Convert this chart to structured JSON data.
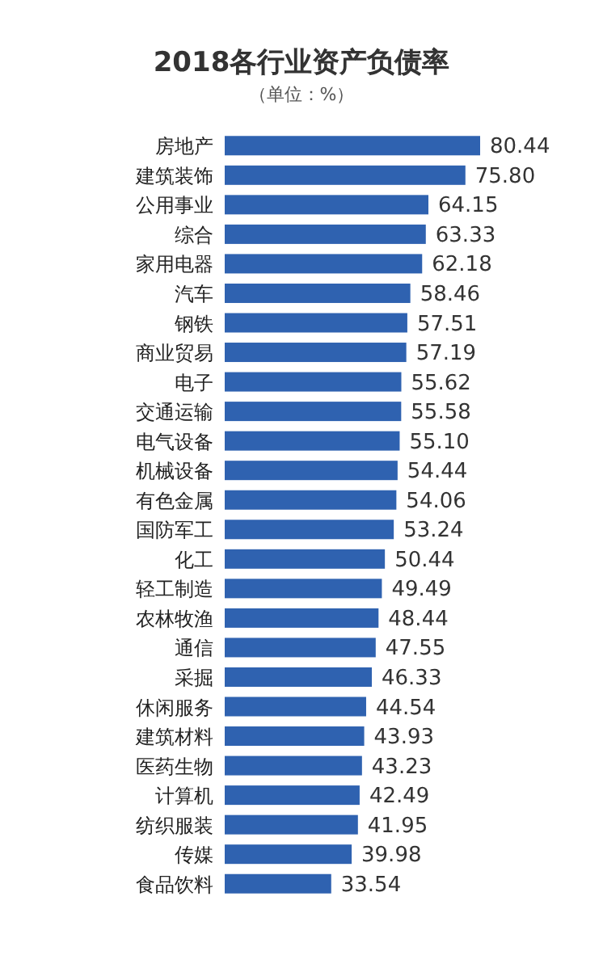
{
  "chart_data": {
    "type": "bar",
    "orientation": "horizontal",
    "title": "2018各行业资产负债率",
    "subtitle": "（单位：%）",
    "categories": [
      "房地产",
      "建筑装饰",
      "公用事业",
      "综合",
      "家用电器",
      "汽车",
      "钢铁",
      "商业贸易",
      "电子",
      "交通运输",
      "电气设备",
      "机械设备",
      "有色金属",
      "国防军工",
      "化工",
      "轻工制造",
      "农林牧渔",
      "通信",
      "采掘",
      "休闲服务",
      "建筑材料",
      "医药生物",
      "计算机",
      "纺织服装",
      "传媒",
      "食品饮料"
    ],
    "values": [
      80.44,
      75.8,
      64.15,
      63.33,
      62.18,
      58.46,
      57.51,
      57.19,
      55.62,
      55.58,
      55.1,
      54.44,
      54.06,
      53.24,
      50.44,
      49.49,
      48.44,
      47.55,
      46.33,
      44.54,
      43.93,
      43.23,
      42.49,
      41.95,
      39.98,
      33.54
    ],
    "value_labels": [
      "80.44",
      "75.80",
      "64.15",
      "63.33",
      "62.18",
      "58.46",
      "57.51",
      "57.19",
      "55.62",
      "55.58",
      "55.10",
      "54.44",
      "54.06",
      "53.24",
      "50.44",
      "49.49",
      "48.44",
      "47.55",
      "46.33",
      "44.54",
      "43.93",
      "43.23",
      "42.49",
      "41.95",
      "39.98",
      "33.54"
    ],
    "color": "#2f62b0"
  }
}
